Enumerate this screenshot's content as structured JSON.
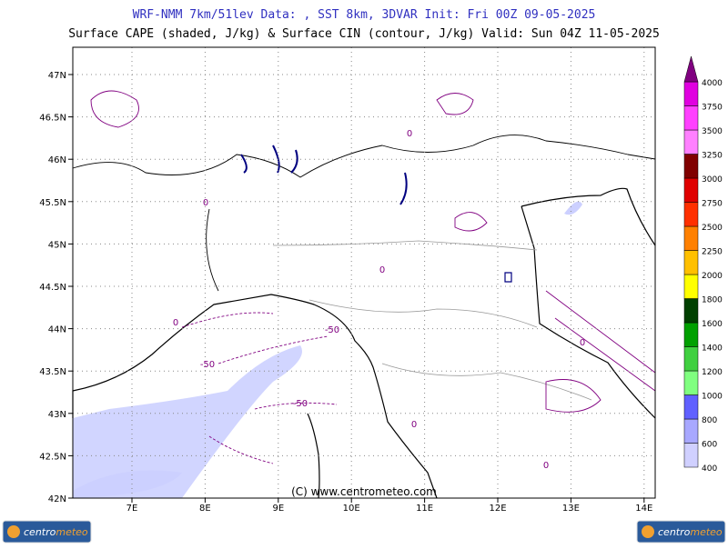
{
  "header": {
    "title": "WRF-NMM 7km/51lev  Data: , SST 8km, 3DVAR  Init: Fri 00Z 09-05-2025",
    "subtitle": "Surface CAPE (shaded, J/kg) & Surface CIN (contour, J/kg)  Valid: Sun 04Z 11-05-2025"
  },
  "map": {
    "lat_labels": [
      "47N",
      "46.5N",
      "46N",
      "45.5N",
      "45N",
      "44.5N",
      "44N",
      "43.5N",
      "43N",
      "42.5N",
      "42N"
    ],
    "lon_labels": [
      "7E",
      "8E",
      "9E",
      "10E",
      "11E",
      "12E",
      "13E",
      "14E"
    ],
    "contour_labels": [
      "0",
      "0",
      "0",
      "0",
      "0",
      "-50",
      "-50",
      "-50",
      "0",
      "0"
    ],
    "copyright": "(C) www.centrometeo.com"
  },
  "colorbar": {
    "labels": [
      400,
      600,
      800,
      1000,
      1200,
      1400,
      1600,
      1800,
      2000,
      2250,
      2500,
      2750,
      3000,
      3250,
      3500,
      3750,
      4000
    ],
    "colors": [
      "#d0d0ff",
      "#a8a8ff",
      "#6060ff",
      "#80ff80",
      "#40d040",
      "#00a000",
      "#004000",
      "#ffff00",
      "#ffc000",
      "#ff8000",
      "#ff3000",
      "#e00000",
      "#800000",
      "#ff80ff",
      "#ff40ff",
      "#e000e0"
    ],
    "top_color": "#800080"
  },
  "logos": [
    {
      "part1": "centro",
      "part2": "meteo"
    },
    {
      "part1": "centro",
      "part2": "meteo"
    }
  ]
}
